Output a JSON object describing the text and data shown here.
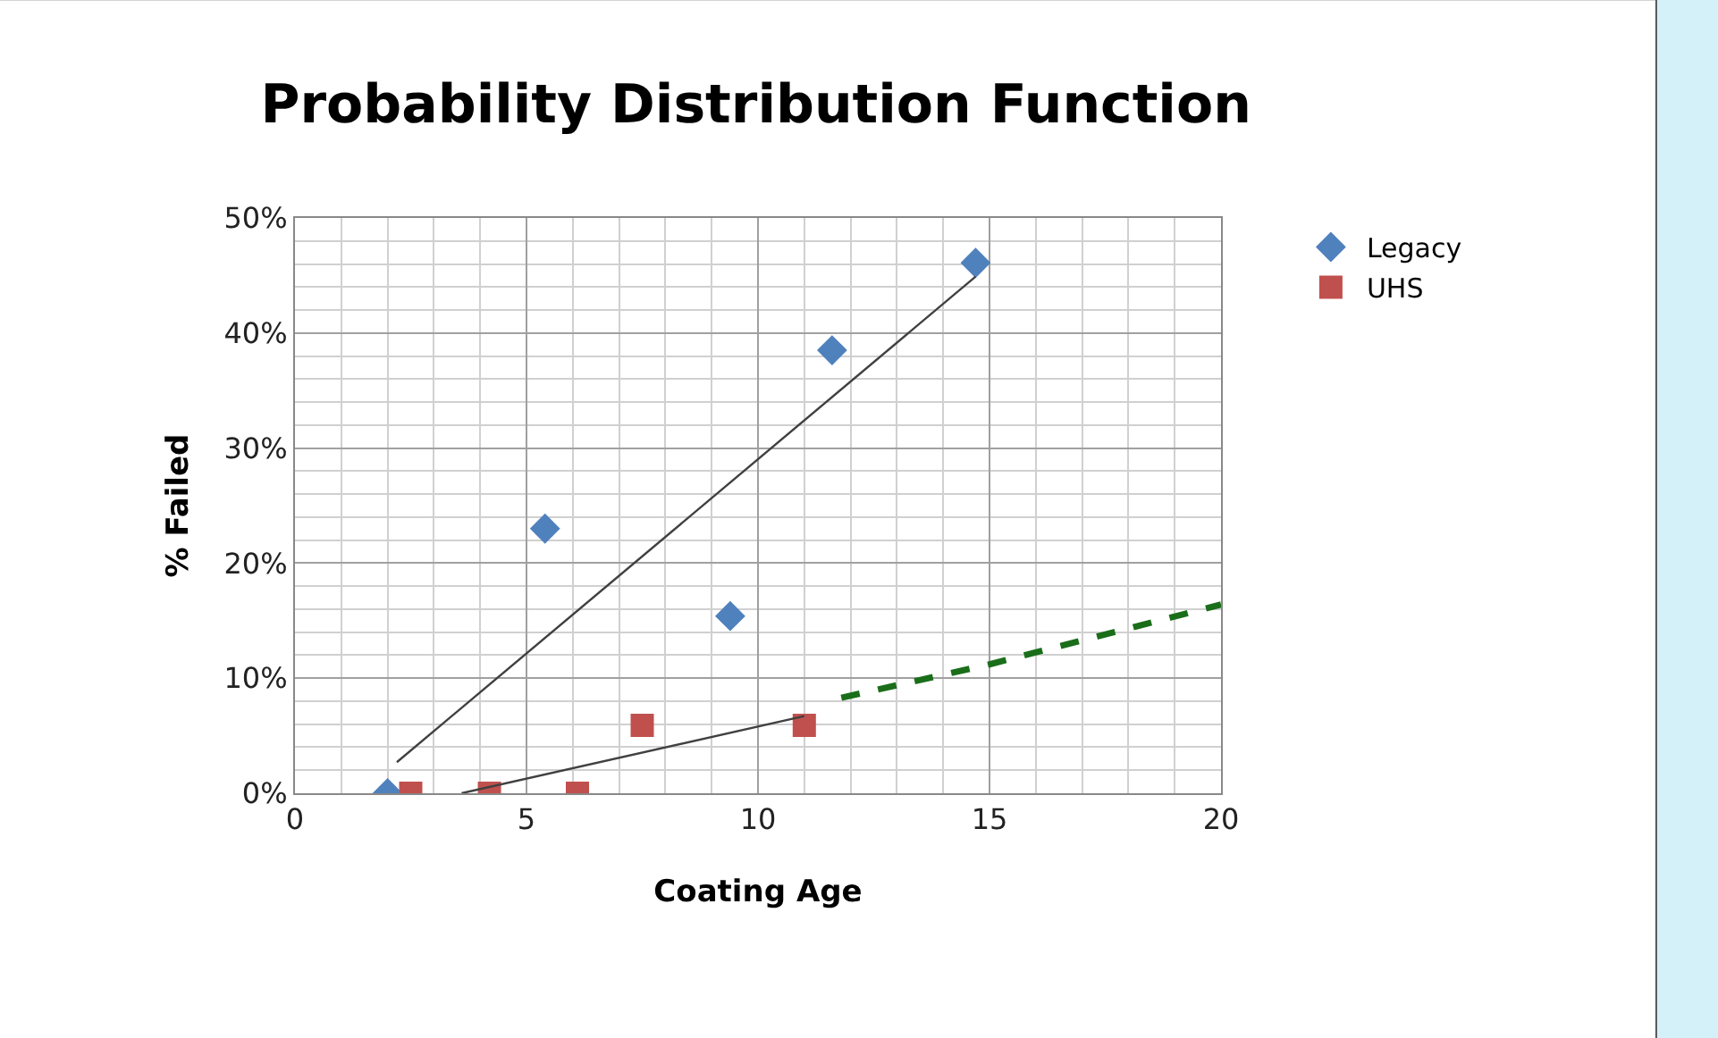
{
  "chart_data": {
    "type": "scatter",
    "title": "Probability Distribution Function",
    "xlabel": "Coating Age",
    "ylabel": "% Failed",
    "xlim": [
      0,
      20
    ],
    "xticks": [
      0,
      5,
      10,
      15,
      20
    ],
    "ylim": [
      0,
      50
    ],
    "yticks": [
      {
        "value": 0,
        "label": "0%"
      },
      {
        "value": 10,
        "label": "10%"
      },
      {
        "value": 20,
        "label": "20%"
      },
      {
        "value": 30,
        "label": "30%"
      },
      {
        "value": 40,
        "label": "40%"
      },
      {
        "value": 50,
        "label": "50%"
      }
    ],
    "grid": true,
    "legend": "top right",
    "series": [
      {
        "name": "Legacy",
        "color": "#4f81bd",
        "marker": "diamond",
        "x": [
          2.0,
          5.4,
          9.4,
          11.6,
          14.7
        ],
        "values": [
          0,
          23,
          15.4,
          38.5,
          46.1
        ]
      },
      {
        "name": "UHS",
        "color": "#c0504d",
        "marker": "square",
        "x": [
          2.5,
          4.2,
          6.1,
          7.5,
          11.0
        ],
        "values": [
          0,
          0,
          0,
          5.9,
          5.9
        ]
      },
      {
        "type": "line",
        "color": "#404040",
        "x": [
          2.2,
          14.7
        ],
        "values": [
          2.7,
          44.9
        ]
      },
      {
        "type": "line",
        "color": "#404040",
        "x": [
          3.6,
          11.0
        ],
        "values": [
          0,
          6.7
        ]
      },
      {
        "type": "line",
        "color": "#1a6e1a",
        "line_style": "dashed",
        "x": [
          11.8,
          15,
          20
        ],
        "values": [
          8.3,
          11.2,
          16.4
        ]
      }
    ]
  }
}
